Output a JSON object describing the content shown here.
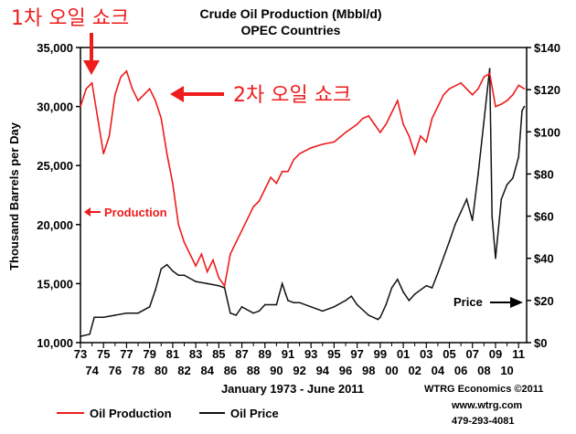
{
  "chart_data": {
    "type": "line",
    "title": "Crude Oil Production (Mbbl/d)",
    "subtitle": "OPEC Countries",
    "xlabel": "January 1973 - June 2011",
    "ylabel": "Thousand Barrels per Day",
    "ylim": [
      10000,
      35000
    ],
    "y2lim": [
      0,
      140
    ],
    "yticks": [
      "35,000",
      "30,000",
      "25,000",
      "20,000",
      "15,000",
      "10,000"
    ],
    "y2ticks": [
      "$140",
      "$120",
      "$100",
      "$80",
      "$60",
      "$40",
      "$20",
      "$0"
    ],
    "xticks_top": [
      "73",
      "75",
      "77",
      "79",
      "81",
      "83",
      "85",
      "87",
      "89",
      "91",
      "93",
      "95",
      "97",
      "99",
      "01",
      "03",
      "05",
      "07",
      "09",
      "11"
    ],
    "xticks_bottom": [
      "74",
      "76",
      "78",
      "80",
      "82",
      "84",
      "86",
      "88",
      "90",
      "92",
      "94",
      "96",
      "98",
      "00",
      "02",
      "04",
      "06",
      "08",
      "10"
    ],
    "series": [
      {
        "name": "Oil Production",
        "color": "#ee1c1c",
        "axis": "left",
        "x": [
          1973.0,
          1973.5,
          1974.0,
          1974.5,
          1975.0,
          1975.5,
          1976.0,
          1976.5,
          1977.0,
          1977.5,
          1978.0,
          1978.5,
          1979.0,
          1979.5,
          1980.0,
          1980.5,
          1981.0,
          1981.5,
          1982.0,
          1982.5,
          1983.0,
          1983.5,
          1984.0,
          1984.5,
          1985.0,
          1985.5,
          1986.0,
          1986.5,
          1987.0,
          1987.5,
          1988.0,
          1988.5,
          1989.0,
          1989.5,
          1990.0,
          1990.5,
          1991.0,
          1991.5,
          1992.0,
          1993.0,
          1994.0,
          1995.0,
          1996.0,
          1997.0,
          1997.5,
          1998.0,
          1998.5,
          1999.0,
          1999.5,
          2000.0,
          2000.5,
          2001.0,
          2001.5,
          2002.0,
          2002.5,
          2003.0,
          2003.5,
          2004.0,
          2004.5,
          2005.0,
          2006.0,
          2007.0,
          2007.5,
          2008.0,
          2008.5,
          2009.0,
          2009.5,
          2010.0,
          2010.5,
          2011.0,
          2011.5
        ],
        "values": [
          30000,
          31500,
          32000,
          29000,
          26000,
          27500,
          31000,
          32500,
          33000,
          31500,
          30500,
          31000,
          31500,
          30500,
          29000,
          26000,
          23500,
          20000,
          18500,
          17500,
          16500,
          17500,
          16000,
          17000,
          15500,
          14800,
          17500,
          18500,
          19500,
          20500,
          21500,
          22000,
          23000,
          24000,
          23500,
          24500,
          24500,
          25500,
          26000,
          26500,
          26800,
          27000,
          27800,
          28500,
          29000,
          29200,
          28500,
          27800,
          28500,
          29500,
          30500,
          28500,
          27500,
          26000,
          27500,
          27000,
          29000,
          30000,
          31000,
          31500,
          32000,
          31000,
          31500,
          32500,
          32800,
          30000,
          30200,
          30500,
          31000,
          31800,
          31500
        ]
      },
      {
        "name": "Oil Price",
        "color": "#111111",
        "axis": "right",
        "x": [
          1973.0,
          1973.8,
          1974.2,
          1975.0,
          1976.0,
          1977.0,
          1978.0,
          1979.0,
          1979.5,
          1980.0,
          1980.5,
          1981.0,
          1981.5,
          1982.0,
          1983.0,
          1984.0,
          1985.0,
          1985.5,
          1986.0,
          1986.5,
          1987.0,
          1988.0,
          1988.5,
          1989.0,
          1990.0,
          1990.5,
          1990.8,
          1991.0,
          1991.5,
          1992.0,
          1993.0,
          1994.0,
          1995.0,
          1996.0,
          1996.5,
          1997.0,
          1998.0,
          1998.8,
          1999.0,
          1999.5,
          2000.0,
          2000.5,
          2001.0,
          2001.5,
          2002.0,
          2003.0,
          2003.5,
          2004.0,
          2005.0,
          2005.5,
          2006.0,
          2006.5,
          2007.0,
          2007.5,
          2008.0,
          2008.5,
          2008.7,
          2009.0,
          2009.5,
          2010.0,
          2010.5,
          2011.0,
          2011.3,
          2011.5
        ],
        "values": [
          3,
          4,
          12,
          12,
          13,
          14,
          14,
          17,
          25,
          35,
          37,
          34,
          32,
          32,
          29,
          28,
          27,
          26,
          14,
          13,
          17,
          14,
          15,
          18,
          18,
          28,
          23,
          20,
          19,
          19,
          17,
          15,
          17,
          20,
          22,
          18,
          13,
          11,
          12,
          18,
          26,
          30,
          24,
          20,
          23,
          27,
          26,
          33,
          48,
          56,
          62,
          68,
          58,
          80,
          105,
          130,
          60,
          40,
          68,
          75,
          78,
          88,
          110,
          112
        ]
      }
    ],
    "annotations": [
      "1차 오일 쇼크",
      "2차 오일 쇼크",
      "Production",
      "Price"
    ],
    "credit": {
      "line1": "WTRG Economics  ©2011",
      "line2": "www.wtrg.com",
      "line3": "479-293-4081"
    },
    "grid": false,
    "legend_position": "bottom-left"
  }
}
